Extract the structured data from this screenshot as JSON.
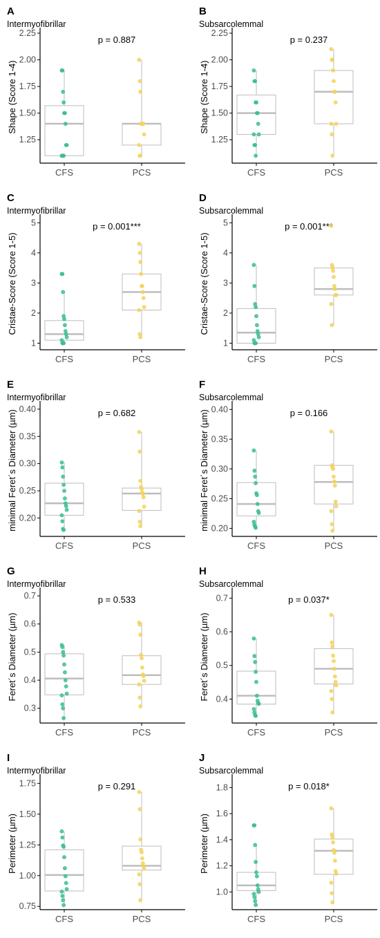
{
  "colors": {
    "CFS": "#3dbd96",
    "PCS": "#f3d35c",
    "box": "#bdbdbd",
    "median": "#bdbdbd",
    "axis": "#000000"
  },
  "chart_data": [
    {
      "type": "box",
      "letter": "A",
      "subtitle": "Intermyofibrillar",
      "pvalue": "p = 0.887",
      "ylabel": "Shape (Score 1-4)",
      "ylim": [
        1.05,
        2.25
      ],
      "yticks": [
        1.25,
        1.5,
        1.75,
        2.0,
        2.25
      ],
      "ytick_labels": [
        "1.25",
        "1.50",
        "1.75",
        "2.00",
        "2.25"
      ],
      "categories": [
        "CFS",
        "PCS"
      ],
      "boxes": [
        {
          "q1": 1.1,
          "median": 1.4,
          "q3": 1.57,
          "whisker_low": 1.1,
          "whisker_high": 1.9
        },
        {
          "q1": 1.2,
          "median": 1.4,
          "q3": 1.4,
          "whisker_low": 1.1,
          "whisker_high": 2.0
        }
      ],
      "points": [
        [
          1.9,
          1.9,
          1.7,
          1.6,
          1.5,
          1.5,
          1.4,
          1.2,
          1.2,
          1.1,
          1.1,
          1.1,
          1.1
        ],
        [
          2.0,
          1.8,
          1.7,
          1.4,
          1.4,
          1.4,
          1.4,
          1.4,
          1.3,
          1.2,
          1.1,
          1.1
        ]
      ]
    },
    {
      "type": "box",
      "letter": "B",
      "subtitle": "Subsarcolemmal",
      "pvalue": "p = 0.237",
      "ylabel": "Shape (Score 1-4)",
      "ylim": [
        1.05,
        2.25
      ],
      "yticks": [
        1.25,
        1.5,
        1.75,
        2.0,
        2.25
      ],
      "ytick_labels": [
        "1.25",
        "1.50",
        "1.75",
        "2.00",
        "2.25"
      ],
      "categories": [
        "CFS",
        "PCS"
      ],
      "boxes": [
        {
          "q1": 1.3,
          "median": 1.5,
          "q3": 1.67,
          "whisker_low": 1.1,
          "whisker_high": 1.9
        },
        {
          "q1": 1.4,
          "median": 1.7,
          "q3": 1.9,
          "whisker_low": 1.1,
          "whisker_high": 2.1
        }
      ],
      "points": [
        [
          1.9,
          1.8,
          1.8,
          1.6,
          1.6,
          1.5,
          1.5,
          1.4,
          1.3,
          1.3,
          1.2,
          1.2,
          1.1
        ],
        [
          2.1,
          2.0,
          2.0,
          1.9,
          1.8,
          1.7,
          1.7,
          1.6,
          1.4,
          1.4,
          1.3,
          1.1
        ]
      ]
    },
    {
      "type": "box",
      "letter": "C",
      "subtitle": "Intermyofibrillar",
      "pvalue": "p = 0.001***",
      "ylabel": "Cristae-Score (Score 1-5)",
      "ylim": [
        0.85,
        5.1
      ],
      "yticks": [
        1,
        2,
        3,
        4,
        5
      ],
      "ytick_labels": [
        "1",
        "2",
        "3",
        "4",
        "5"
      ],
      "categories": [
        "CFS",
        "PCS"
      ],
      "boxes": [
        {
          "q1": 1.1,
          "median": 1.3,
          "q3": 1.75,
          "whisker_low": 1.0,
          "whisker_high": 2.7
        },
        {
          "q1": 2.1,
          "median": 2.7,
          "q3": 3.3,
          "whisker_low": 1.2,
          "whisker_high": 4.3
        }
      ],
      "points": [
        [
          3.3,
          3.3,
          2.7,
          1.9,
          1.8,
          1.6,
          1.4,
          1.3,
          1.2,
          1.1,
          1.0,
          1.0,
          1.0
        ],
        [
          4.3,
          4.0,
          3.7,
          3.3,
          2.9,
          2.9,
          2.7,
          2.5,
          2.2,
          2.1,
          1.3,
          1.2
        ]
      ]
    },
    {
      "type": "box",
      "letter": "D",
      "subtitle": "Subsarcolemmal",
      "pvalue": "p = 0.001***",
      "ylabel": "Cristae-Score (Score 1-5)",
      "ylim": [
        0.85,
        5.1
      ],
      "yticks": [
        1,
        2,
        3,
        4,
        5
      ],
      "ytick_labels": [
        "1",
        "2",
        "3",
        "4",
        "5"
      ],
      "categories": [
        "CFS",
        "PCS"
      ],
      "boxes": [
        {
          "q1": 1.0,
          "median": 1.35,
          "q3": 2.15,
          "whisker_low": 1.0,
          "whisker_high": 3.6
        },
        {
          "q1": 2.6,
          "median": 2.8,
          "q3": 3.5,
          "whisker_low": 1.6,
          "whisker_high": 3.6
        }
      ],
      "points": [
        [
          3.6,
          2.9,
          2.3,
          2.2,
          1.9,
          1.6,
          1.4,
          1.3,
          1.2,
          1.1,
          1.0,
          1.0,
          1.0
        ],
        [
          4.9,
          3.6,
          3.5,
          3.4,
          3.2,
          2.9,
          2.8,
          2.6,
          2.6,
          2.3,
          1.6
        ]
      ]
    },
    {
      "type": "box",
      "letter": "E",
      "subtitle": "Intermyofibrillar",
      "pvalue": "p = 0.682",
      "ylabel": "minimal Feret´s Diameter (µm)",
      "ylim": [
        0.17,
        0.405
      ],
      "yticks": [
        0.2,
        0.25,
        0.3,
        0.35,
        0.4
      ],
      "ytick_labels": [
        "0.20",
        "0.25",
        "0.30",
        "0.35",
        "0.40"
      ],
      "categories": [
        "CFS",
        "PCS"
      ],
      "boxes": [
        {
          "q1": 0.205,
          "median": 0.227,
          "q3": 0.264,
          "whisker_low": 0.178,
          "whisker_high": 0.302
        },
        {
          "q1": 0.214,
          "median": 0.245,
          "q3": 0.255,
          "whisker_low": 0.185,
          "whisker_high": 0.358
        }
      ],
      "points": [
        [
          0.302,
          0.293,
          0.276,
          0.261,
          0.25,
          0.236,
          0.227,
          0.222,
          0.215,
          0.205,
          0.194,
          0.18,
          0.178
        ],
        [
          0.358,
          0.322,
          0.268,
          0.257,
          0.253,
          0.247,
          0.244,
          0.238,
          0.221,
          0.213,
          0.193,
          0.185
        ]
      ]
    },
    {
      "type": "box",
      "letter": "F",
      "subtitle": "Subsarcolemmal",
      "pvalue": "p = 0.166",
      "ylabel": "minimal Feret´s Diameter (µm)",
      "ylim": [
        0.19,
        0.405
      ],
      "yticks": [
        0.2,
        0.25,
        0.3,
        0.35,
        0.4
      ],
      "ytick_labels": [
        "0.20",
        "0.25",
        "0.30",
        "0.35",
        "0.40"
      ],
      "categories": [
        "CFS",
        "PCS"
      ],
      "boxes": [
        {
          "q1": 0.221,
          "median": 0.241,
          "q3": 0.277,
          "whisker_low": 0.201,
          "whisker_high": 0.331
        },
        {
          "q1": 0.241,
          "median": 0.278,
          "q3": 0.306,
          "whisker_low": 0.196,
          "whisker_high": 0.363
        }
      ],
      "points": [
        [
          0.331,
          0.297,
          0.287,
          0.276,
          0.259,
          0.256,
          0.241,
          0.229,
          0.226,
          0.211,
          0.206,
          0.203,
          0.201
        ],
        [
          0.363,
          0.306,
          0.303,
          0.3,
          0.287,
          0.279,
          0.272,
          0.245,
          0.237,
          0.229,
          0.207,
          0.196
        ]
      ]
    },
    {
      "type": "box",
      "letter": "G",
      "subtitle": "Intermyofibrillar",
      "pvalue": "p = 0.533",
      "ylabel": "Feret´s Diameter (µm)",
      "ylim": [
        0.255,
        0.71
      ],
      "yticks": [
        0.3,
        0.4,
        0.5,
        0.6,
        0.7
      ],
      "ytick_labels": [
        "0.3",
        "0.4",
        "0.5",
        "0.6",
        "0.7"
      ],
      "categories": [
        "CFS",
        "PCS"
      ],
      "boxes": [
        {
          "q1": 0.348,
          "median": 0.406,
          "q3": 0.494,
          "whisker_low": 0.265,
          "whisker_high": 0.525
        },
        {
          "q1": 0.385,
          "median": 0.418,
          "q3": 0.487,
          "whisker_low": 0.307,
          "whisker_high": 0.605
        }
      ],
      "points": [
        [
          0.525,
          0.518,
          0.5,
          0.488,
          0.456,
          0.428,
          0.4,
          0.378,
          0.352,
          0.346,
          0.314,
          0.3,
          0.265
        ],
        [
          0.605,
          0.598,
          0.562,
          0.49,
          0.478,
          0.445,
          0.42,
          0.415,
          0.398,
          0.385,
          0.338,
          0.307
        ]
      ]
    },
    {
      "type": "box",
      "letter": "H",
      "subtitle": "Subsarcolemmal",
      "pvalue": "p = 0.037*",
      "ylabel": "Feret´s Diameter (µm)",
      "ylim": [
        0.335,
        0.715
      ],
      "yticks": [
        0.4,
        0.5,
        0.6,
        0.7
      ],
      "ytick_labels": [
        "0.4",
        "0.5",
        "0.6",
        "0.7"
      ],
      "categories": [
        "CFS",
        "PCS"
      ],
      "boxes": [
        {
          "q1": 0.385,
          "median": 0.41,
          "q3": 0.483,
          "whisker_low": 0.35,
          "whisker_high": 0.58
        },
        {
          "q1": 0.445,
          "median": 0.49,
          "q3": 0.55,
          "whisker_low": 0.36,
          "whisker_high": 0.65
        }
      ],
      "points": [
        [
          0.58,
          0.528,
          0.51,
          0.481,
          0.451,
          0.41,
          0.395,
          0.388,
          0.386,
          0.37,
          0.36,
          0.352,
          0.35
        ],
        [
          0.65,
          0.568,
          0.556,
          0.529,
          0.513,
          0.49,
          0.467,
          0.451,
          0.441,
          0.424,
          0.4,
          0.36
        ]
      ]
    },
    {
      "type": "box",
      "letter": "I",
      "subtitle": "Intermyofibrillar",
      "pvalue": "p = 0.291",
      "ylabel": "Perimeter (µm)",
      "ylim": [
        0.74,
        1.78
      ],
      "yticks": [
        0.75,
        1.0,
        1.25,
        1.5,
        1.75
      ],
      "ytick_labels": [
        "0.75",
        "1.00",
        "1.25",
        "1.50",
        "1.75"
      ],
      "categories": [
        "CFS",
        "PCS"
      ],
      "boxes": [
        {
          "q1": 0.875,
          "median": 1.005,
          "q3": 1.21,
          "whisker_low": 0.76,
          "whisker_high": 1.36
        },
        {
          "q1": 1.045,
          "median": 1.08,
          "q3": 1.24,
          "whisker_low": 0.8,
          "whisker_high": 1.68
        }
      ],
      "points": [
        [
          1.36,
          1.31,
          1.245,
          1.235,
          1.15,
          1.06,
          0.995,
          0.94,
          0.89,
          0.87,
          0.835,
          0.8,
          0.76
        ],
        [
          1.68,
          1.54,
          1.295,
          1.21,
          1.19,
          1.14,
          1.1,
          1.075,
          1.06,
          1.01,
          0.93,
          0.8
        ]
      ]
    },
    {
      "type": "box",
      "letter": "J",
      "subtitle": "Subsarcolemmal",
      "pvalue": "p = 0.018*",
      "ylabel": "Perimeter  (µm)",
      "ylim": [
        0.88,
        1.86
      ],
      "yticks": [
        1.0,
        1.2,
        1.4,
        1.6,
        1.8
      ],
      "ytick_labels": [
        "1.0",
        "1.2",
        "1.4",
        "1.6",
        "1.8"
      ],
      "categories": [
        "CFS",
        "PCS"
      ],
      "boxes": [
        {
          "q1": 1.01,
          "median": 1.05,
          "q3": 1.15,
          "whisker_low": 0.9,
          "whisker_high": 1.36
        },
        {
          "q1": 1.135,
          "median": 1.315,
          "q3": 1.405,
          "whisker_low": 0.92,
          "whisker_high": 1.64
        }
      ],
      "points": [
        [
          1.51,
          1.51,
          1.36,
          1.23,
          1.15,
          1.12,
          1.05,
          1.02,
          1.0,
          0.985,
          0.96,
          0.93,
          0.9
        ],
        [
          1.64,
          1.44,
          1.42,
          1.38,
          1.32,
          1.3,
          1.24,
          1.16,
          1.14,
          1.07,
          0.99,
          0.92
        ]
      ]
    }
  ]
}
